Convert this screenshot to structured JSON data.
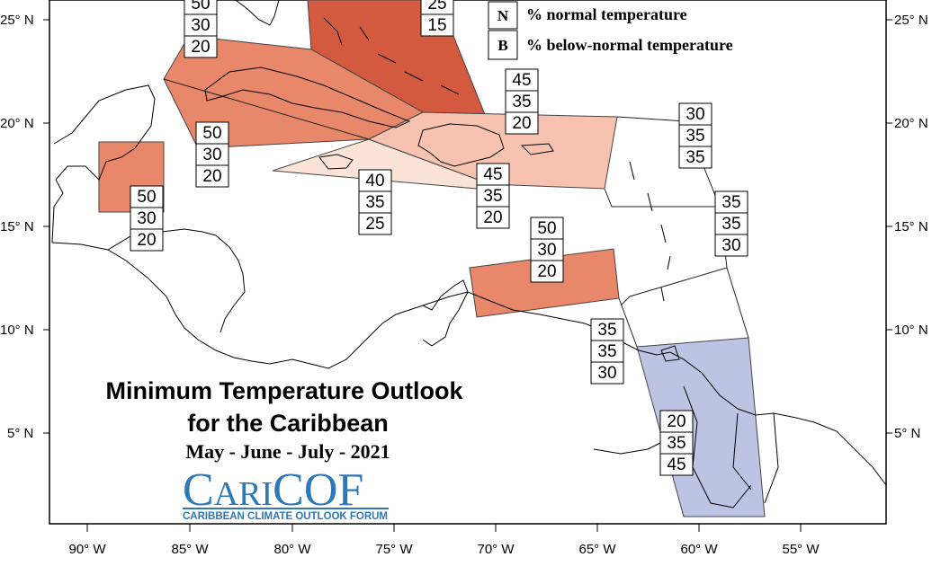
{
  "map": {
    "title_line1": "Minimum Temperature Outlook",
    "title_line2": "for the Caribbean",
    "period": "May - June - July - 2021",
    "logo": {
      "name": "CariCOF",
      "text_c1": "C",
      "text_ari": "ARI",
      "text_cof": "COF",
      "subtitle": "CARIBBEAN CLIMATE OUTLOOK FORUM"
    },
    "legend": [
      {
        "key": "N",
        "label": "% normal temperature"
      },
      {
        "key": "B",
        "label": "% below-normal temperature"
      }
    ],
    "x_ticks": [
      "90° W",
      "85° W",
      "80° W",
      "75° W",
      "70° W",
      "65° W",
      "60° W",
      "55° W"
    ],
    "y_ticks": [
      "25° N",
      "20° N",
      "15° N",
      "10° N",
      "5° N"
    ],
    "colors": {
      "above_50": "#e8876a",
      "above_60": "#d35a3e",
      "above_45": "#f7c3b0",
      "above_40": "#fbe3d8",
      "below_45": "#bcc3e3",
      "frame": "#000000"
    },
    "boxes": [
      {
        "id": "belize",
        "values": [
          "50",
          "30",
          "20"
        ]
      },
      {
        "id": "cuba-top",
        "values": [
          "50",
          "30",
          "20"
        ]
      },
      {
        "id": "cuba-south",
        "values": [
          "50",
          "30",
          "20"
        ]
      },
      {
        "id": "bahamas",
        "values": [
          "25",
          "15"
        ]
      },
      {
        "id": "hispaniola-north",
        "values": [
          "45",
          "35",
          "20"
        ]
      },
      {
        "id": "hispaniola-south",
        "values": [
          "45",
          "35",
          "20"
        ]
      },
      {
        "id": "jamaica",
        "values": [
          "40",
          "35",
          "25"
        ]
      },
      {
        "id": "leeward-north",
        "values": [
          "30",
          "35",
          "35"
        ]
      },
      {
        "id": "leeward-east",
        "values": [
          "35",
          "35",
          "30"
        ]
      },
      {
        "id": "abc-islands",
        "values": [
          "50",
          "30",
          "20"
        ]
      },
      {
        "id": "trinidad",
        "values": [
          "35",
          "35",
          "30"
        ]
      },
      {
        "id": "guianas",
        "values": [
          "20",
          "35",
          "45"
        ]
      }
    ]
  }
}
